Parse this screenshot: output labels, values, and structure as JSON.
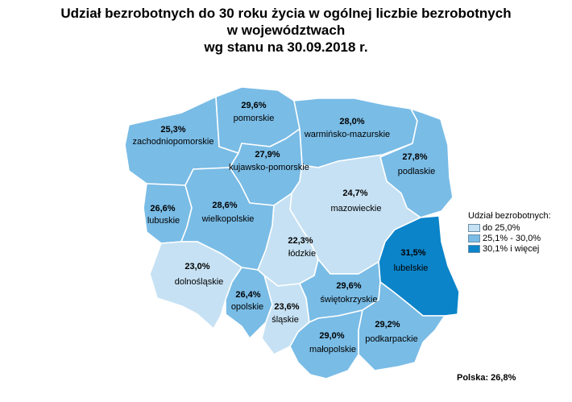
{
  "title": {
    "line1": "Udział bezrobotnych do 30 roku życia w ogólnej liczbie bezrobotnych",
    "line2": "w województwach",
    "line3": "wg stanu na 30.09.2018 r."
  },
  "colors": {
    "low": "#c6e1f3",
    "mid": "#79bce6",
    "high": "#0b84c9",
    "border": "#ffffff"
  },
  "legend": {
    "title": "Udział bezrobotnych:",
    "items": [
      {
        "label": "do 25,0%",
        "class": "low"
      },
      {
        "label": "25,1% - 30,0%",
        "class": "mid"
      },
      {
        "label": "30,1% i więcej",
        "class": "high"
      }
    ]
  },
  "regions": {
    "pomorskie": {
      "name": "pomorskie",
      "value": "29,6%",
      "class": "mid"
    },
    "warminsko_mazurskie": {
      "name": "warmińsko-mazurskie",
      "value": "28,0%",
      "class": "mid"
    },
    "zachodniopomorskie": {
      "name": "zachodniopomorskie",
      "value": "25,3%",
      "class": "mid"
    },
    "kujawsko_pomorskie": {
      "name": "kujawsko-pomorskie",
      "value": "27,9%",
      "class": "mid"
    },
    "podlaskie": {
      "name": "podlaskie",
      "value": "27,8%",
      "class": "mid"
    },
    "mazowieckie": {
      "name": "mazowieckie",
      "value": "24,7%",
      "class": "low"
    },
    "lubuskie": {
      "name": "lubuskie",
      "value": "26,6%",
      "class": "mid"
    },
    "wielkopolskie": {
      "name": "wielkopolskie",
      "value": "28,6%",
      "class": "mid"
    },
    "lodzkie": {
      "name": "łódzkie",
      "value": "22,3%",
      "class": "low"
    },
    "lubelskie": {
      "name": "lubelskie",
      "value": "31,5%",
      "class": "high"
    },
    "dolnoslaskie": {
      "name": "dolnośląskie",
      "value": "23,0%",
      "class": "low"
    },
    "opolskie": {
      "name": "opolskie",
      "value": "26,4%",
      "class": "mid"
    },
    "slaskie": {
      "name": "śląskie",
      "value": "23,6%",
      "class": "low"
    },
    "swietokrzyskie": {
      "name": "świętokrzyskie",
      "value": "29,6%",
      "class": "mid"
    },
    "malopolskie": {
      "name": "małopolskie",
      "value": "29,0%",
      "class": "mid"
    },
    "podkarpackie": {
      "name": "podkarpackie",
      "value": "29,2%",
      "class": "mid"
    }
  },
  "summary": "Polska: 26,8%"
}
